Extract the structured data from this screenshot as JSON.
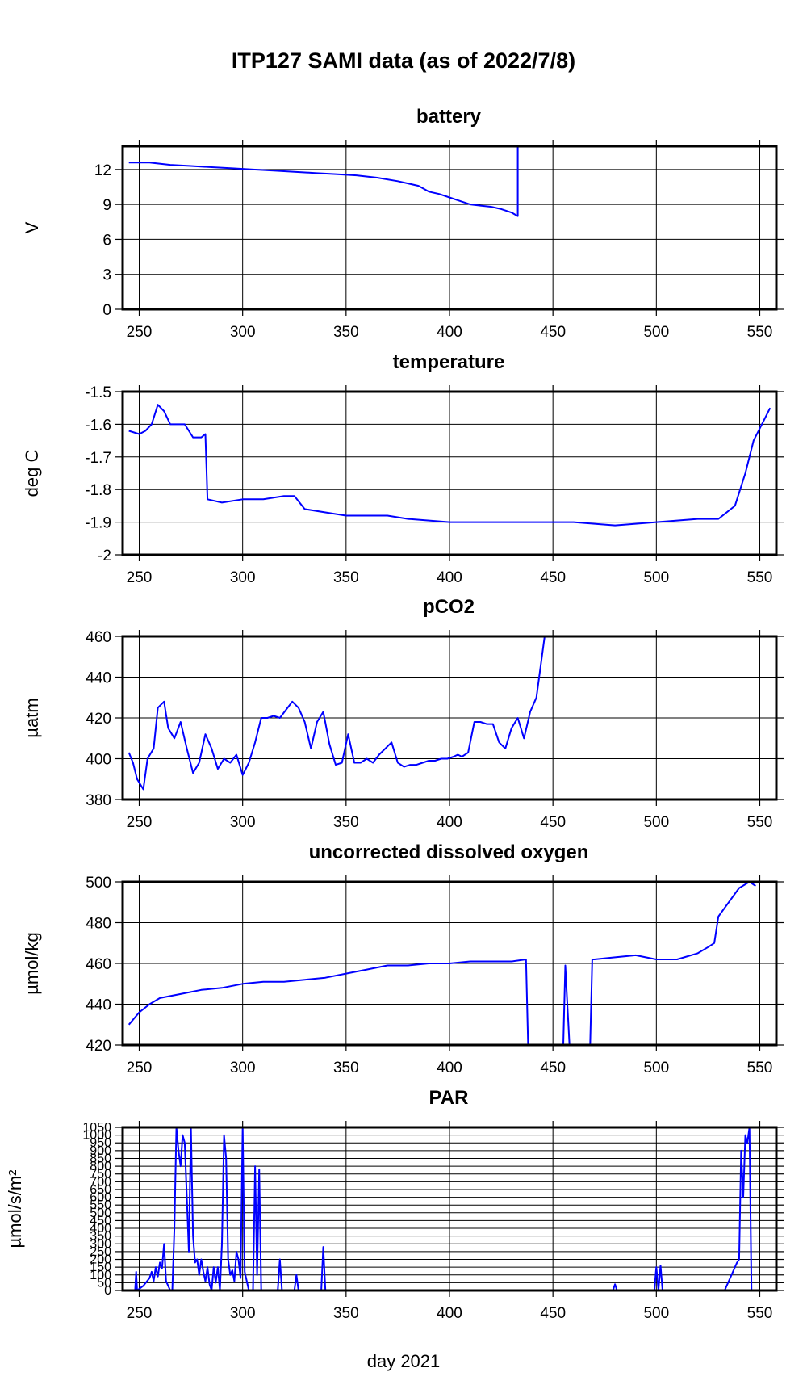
{
  "title": "ITP127 SAMI data (as of 2022/7/8)",
  "xlabel": "day 2021",
  "colors": {
    "line": "#0000ff",
    "grid": "#000000",
    "frame": "#000000",
    "background": "#ffffff"
  },
  "chart_data": [
    {
      "type": "line",
      "title": "battery",
      "ylabel": "V",
      "xlim": [
        242,
        558
      ],
      "ylim": [
        0,
        14
      ],
      "xticks": [
        250,
        300,
        350,
        400,
        450,
        500,
        550
      ],
      "yticks": [
        0,
        3,
        6,
        9,
        12
      ],
      "series": [
        {
          "x": [
            245,
            255,
            265,
            275,
            285,
            295,
            305,
            315,
            325,
            335,
            345,
            355,
            365,
            375,
            385,
            390,
            395,
            400,
            405,
            410,
            415,
            420,
            425,
            430,
            433,
            433,
            436,
            436,
            440,
            450,
            460,
            470,
            480,
            490,
            500,
            510,
            520,
            530,
            540,
            550,
            555
          ],
          "y": [
            12.6,
            12.6,
            12.4,
            12.3,
            12.2,
            12.1,
            12.0,
            11.9,
            11.8,
            11.7,
            11.6,
            11.5,
            11.3,
            11.0,
            10.6,
            10.1,
            9.9,
            9.6,
            9.3,
            9.0,
            8.9,
            8.8,
            8.6,
            8.3,
            8.0,
            14,
            14,
            14,
            14,
            14,
            14,
            14,
            14,
            14,
            14,
            14,
            14,
            14,
            14,
            14,
            14
          ]
        }
      ]
    },
    {
      "type": "line",
      "title": "temperature",
      "ylabel": "deg C",
      "xlim": [
        242,
        558
      ],
      "ylim": [
        -2.0,
        -1.5
      ],
      "xticks": [
        250,
        300,
        350,
        400,
        450,
        500,
        550
      ],
      "yticks": [
        -2.0,
        -1.9,
        -1.8,
        -1.7,
        -1.6,
        -1.5
      ],
      "series": [
        {
          "x": [
            245,
            250,
            253,
            256,
            259,
            262,
            265,
            268,
            272,
            276,
            280,
            282,
            283,
            290,
            300,
            310,
            320,
            325,
            330,
            340,
            350,
            360,
            370,
            380,
            400,
            420,
            440,
            460,
            480,
            500,
            520,
            530,
            538,
            543,
            547,
            551,
            555
          ],
          "y": [
            -1.62,
            -1.63,
            -1.62,
            -1.6,
            -1.54,
            -1.56,
            -1.6,
            -1.6,
            -1.6,
            -1.64,
            -1.64,
            -1.63,
            -1.83,
            -1.84,
            -1.83,
            -1.83,
            -1.82,
            -1.82,
            -1.86,
            -1.87,
            -1.88,
            -1.88,
            -1.88,
            -1.89,
            -1.9,
            -1.9,
            -1.9,
            -1.9,
            -1.91,
            -1.9,
            -1.89,
            -1.89,
            -1.85,
            -1.75,
            -1.65,
            -1.6,
            -1.55
          ]
        }
      ]
    },
    {
      "type": "line",
      "title": "pCO2",
      "ylabel": "µatm",
      "xlim": [
        242,
        558
      ],
      "ylim": [
        380,
        460
      ],
      "xticks": [
        250,
        300,
        350,
        400,
        450,
        500,
        550
      ],
      "yticks": [
        380,
        400,
        420,
        440,
        460
      ],
      "series": [
        {
          "x": [
            245,
            247,
            249,
            252,
            254,
            257,
            259,
            262,
            264,
            267,
            270,
            273,
            276,
            279,
            282,
            285,
            288,
            291,
            294,
            297,
            300,
            303,
            306,
            309,
            312,
            315,
            318,
            321,
            324,
            327,
            330,
            333,
            336,
            339,
            342,
            345,
            348,
            351,
            354,
            357,
            360,
            363,
            366,
            369,
            372,
            375,
            378,
            381,
            384,
            387,
            390,
            393,
            396,
            399,
            402,
            404,
            406,
            409,
            412,
            415,
            418,
            421,
            424,
            427,
            430,
            433,
            436,
            439,
            442,
            446
          ],
          "y": [
            403,
            398,
            390,
            385,
            400,
            405,
            425,
            428,
            415,
            410,
            418,
            405,
            393,
            398,
            412,
            405,
            395,
            400,
            398,
            402,
            392,
            398,
            408,
            420,
            420,
            421,
            420,
            424,
            428,
            425,
            418,
            405,
            418,
            423,
            407,
            397,
            398,
            412,
            398,
            398,
            400,
            398,
            402,
            405,
            408,
            398,
            396,
            397,
            397,
            398,
            399,
            399,
            400,
            400,
            401,
            402,
            401,
            403,
            418,
            418,
            417,
            417,
            408,
            405,
            415,
            420,
            410,
            423,
            430,
            460
          ]
        }
      ]
    },
    {
      "type": "line",
      "title": "uncorrected dissolved oxygen",
      "ylabel": "µmol/kg",
      "xlim": [
        242,
        558
      ],
      "ylim": [
        420,
        500
      ],
      "xticks": [
        250,
        300,
        350,
        400,
        450,
        500,
        550
      ],
      "yticks": [
        420,
        440,
        460,
        480,
        500
      ],
      "series": [
        {
          "x": [
            245,
            250,
            255,
            260,
            270,
            280,
            290,
            300,
            310,
            320,
            330,
            340,
            350,
            360,
            370,
            380,
            390,
            400,
            410,
            420,
            430,
            437,
            438,
            440,
            440,
            445,
            455,
            456,
            458,
            460,
            468,
            469,
            470,
            480,
            490,
            500,
            510,
            520,
            525,
            528,
            530,
            535,
            540,
            545,
            548
          ],
          "y": [
            430,
            436,
            440,
            443,
            445,
            447,
            448,
            450,
            451,
            451,
            452,
            453,
            455,
            457,
            459,
            459,
            460,
            460,
            461,
            461,
            461,
            462,
            420,
            420,
            420,
            420,
            420,
            459,
            420,
            420,
            420,
            462,
            462,
            463,
            464,
            462,
            462,
            465,
            468,
            470,
            483,
            490,
            497,
            500,
            498
          ]
        }
      ]
    },
    {
      "type": "line",
      "title": "PAR",
      "ylabel": "µmol/s/m²",
      "xlim": [
        242,
        558
      ],
      "ylim": [
        0,
        1050
      ],
      "xticks": [
        250,
        300,
        350,
        400,
        450,
        500,
        550
      ],
      "yticks": [
        0,
        50,
        100,
        150,
        200,
        250,
        300,
        350,
        400,
        450,
        500,
        550,
        600,
        650,
        700,
        750,
        800,
        850,
        900,
        950,
        1000,
        1050
      ],
      "ytick_labels": [
        "0",
        "50",
        "100",
        "150",
        "200",
        "250",
        "300",
        "350",
        "400",
        "450",
        "500",
        "550",
        "600",
        "650",
        "700",
        "750",
        "800",
        "850",
        "900",
        "950",
        "1000",
        "1050"
      ],
      "series": [
        {
          "x": [
            245,
            248,
            248.5,
            249,
            252,
            255,
            256,
            257,
            258,
            259,
            260,
            261,
            262,
            263,
            265,
            266,
            267,
            268,
            269,
            270,
            271,
            272,
            273,
            274,
            275,
            276,
            277,
            278,
            279,
            280,
            281,
            282,
            283,
            284,
            285,
            286,
            287,
            288,
            289,
            290,
            291,
            292,
            293,
            294,
            295,
            296,
            297,
            298,
            299,
            300,
            301,
            302,
            303,
            305,
            306,
            307,
            308,
            309,
            310,
            312,
            317,
            318,
            319,
            325,
            326,
            327,
            338,
            339,
            340,
            345,
            400,
            479,
            480,
            481,
            499,
            500,
            501,
            502,
            503,
            505,
            530,
            533,
            539,
            540,
            541,
            542,
            543,
            544,
            545,
            546,
            547
          ],
          "y": [
            0,
            0,
            120,
            0,
            30,
            80,
            120,
            60,
            150,
            90,
            180,
            140,
            300,
            60,
            0,
            0,
            400,
            1050,
            900,
            800,
            1000,
            950,
            600,
            250,
            1050,
            350,
            180,
            200,
            100,
            200,
            120,
            60,
            150,
            40,
            0,
            150,
            50,
            150,
            0,
            300,
            1000,
            850,
            200,
            100,
            130,
            60,
            250,
            200,
            80,
            1050,
            120,
            60,
            0,
            0,
            800,
            100,
            780,
            0,
            0,
            0,
            0,
            200,
            0,
            0,
            100,
            0,
            0,
            280,
            0,
            0,
            0,
            0,
            40,
            0,
            0,
            150,
            0,
            160,
            0,
            0,
            0,
            0,
            180,
            200,
            900,
            600,
            1000,
            950,
            1050,
            0,
            0
          ]
        }
      ]
    }
  ]
}
